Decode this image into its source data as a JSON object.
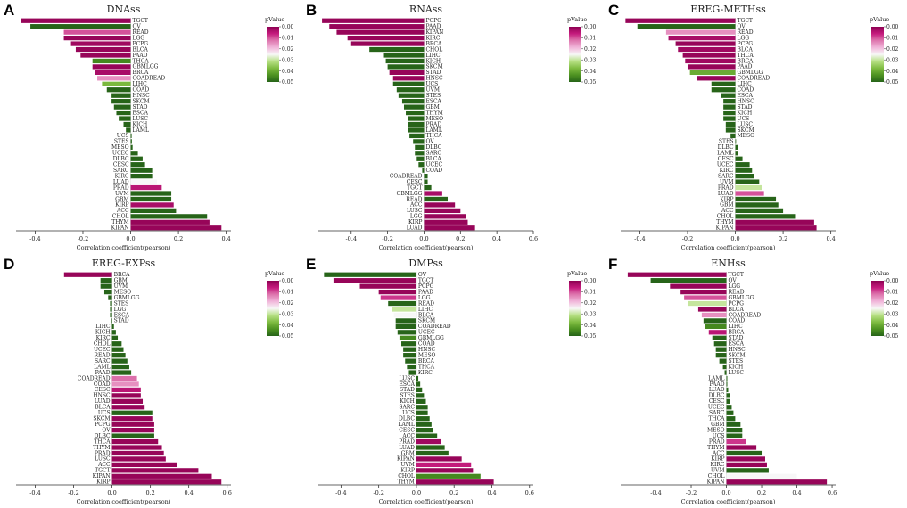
{
  "legend": {
    "title": "pValue",
    "ticks": [
      "0.00",
      "0.01",
      "0.02",
      "0.03",
      "0.04",
      "0.05"
    ],
    "colors": [
      "#8e0152",
      "#c51b7d",
      "#de77ae",
      "#f1b6da",
      "#f7f7f7",
      "#b8e186",
      "#7fbc41",
      "#4d9221",
      "#276419"
    ]
  },
  "xlabel": "Correlation coefficient(pearson)",
  "chart_data": [
    {
      "label": "A",
      "title": "DNAss",
      "type": "bar",
      "orientation": "horizontal",
      "xlim": [
        -0.48,
        0.42
      ],
      "xticks": [
        -0.4,
        -0.2,
        0.0,
        0.2,
        0.4
      ],
      "categories": [
        "TGCT",
        "OV",
        "READ",
        "LGG",
        "PCPG",
        "BLCA",
        "PAAD",
        "THCA",
        "GBMLGG",
        "BRCA",
        "COADREAD",
        "LIHC",
        "COAD",
        "HNSC",
        "SKCM",
        "STAD",
        "ESCA",
        "LUSC",
        "KICH",
        "LAML",
        "UCS",
        "STES",
        "MESO",
        "UCEC",
        "DLBC",
        "CESC",
        "SARC",
        "KIRC",
        "LUAD",
        "PRAD",
        "UVM",
        "GBM",
        "KIRP",
        "ACC",
        "CHOL",
        "THYM",
        "KIPAN"
      ],
      "values": [
        -0.46,
        -0.42,
        -0.28,
        -0.28,
        -0.25,
        -0.23,
        -0.21,
        -0.16,
        -0.16,
        -0.15,
        -0.14,
        -0.12,
        -0.1,
        -0.08,
        -0.08,
        -0.07,
        -0.06,
        -0.05,
        -0.03,
        -0.02,
        0.004,
        0.005,
        0.008,
        0.03,
        0.05,
        0.06,
        0.09,
        0.09,
        0.11,
        0.13,
        0.17,
        0.17,
        0.18,
        0.19,
        0.32,
        0.33,
        0.38
      ],
      "pvalues": [
        0.001,
        0.05,
        0.01,
        0.001,
        0.002,
        0.001,
        0.001,
        0.045,
        0.001,
        0.003,
        0.015,
        0.038,
        0.05,
        0.05,
        0.05,
        0.05,
        0.05,
        0.05,
        0.05,
        0.05,
        0.05,
        0.05,
        0.05,
        0.05,
        0.05,
        0.05,
        0.05,
        0.05,
        0.025,
        0.005,
        0.05,
        0.05,
        0.003,
        0.05,
        0.05,
        0.001,
        0.001
      ]
    },
    {
      "label": "B",
      "title": "RNAss",
      "type": "bar",
      "orientation": "horizontal",
      "xlim": [
        -0.58,
        0.6
      ],
      "xticks": [
        -0.4,
        -0.2,
        0.0,
        0.2,
        0.4,
        0.6
      ],
      "categories": [
        "PCPG",
        "PAAD",
        "KIPAN",
        "KIRC",
        "BRCA",
        "CHOL",
        "LIHC",
        "KICH",
        "SKCM",
        "STAD",
        "HNSC",
        "UCS",
        "UVM",
        "STES",
        "ESCA",
        "GBM",
        "THYM",
        "MESO",
        "PRAD",
        "LAML",
        "THCA",
        "OV",
        "DLBC",
        "SARC",
        "BLCA",
        "UCEC",
        "COAD",
        "COADREAD",
        "CESC",
        "TGCT",
        "GBMLGG",
        "READ",
        "ACC",
        "LUSC",
        "LGG",
        "KIRP",
        "LUAD"
      ],
      "values": [
        -0.56,
        -0.52,
        -0.48,
        -0.42,
        -0.4,
        -0.3,
        -0.22,
        -0.21,
        -0.2,
        -0.19,
        -0.17,
        -0.17,
        -0.15,
        -0.14,
        -0.12,
        -0.11,
        -0.1,
        -0.09,
        -0.09,
        -0.09,
        -0.08,
        -0.06,
        -0.05,
        -0.05,
        -0.04,
        -0.03,
        -0.01,
        0.02,
        0.02,
        0.04,
        0.1,
        0.13,
        0.17,
        0.2,
        0.23,
        0.24,
        0.28
      ],
      "pvalues": [
        0.001,
        0.001,
        0.001,
        0.001,
        0.001,
        0.05,
        0.05,
        0.05,
        0.05,
        0.001,
        0.001,
        0.05,
        0.05,
        0.05,
        0.05,
        0.05,
        0.05,
        0.05,
        0.05,
        0.05,
        0.05,
        0.05,
        0.05,
        0.05,
        0.05,
        0.05,
        0.05,
        0.05,
        0.05,
        0.05,
        0.003,
        0.05,
        0.001,
        0.001,
        0.001,
        0.001,
        0.001
      ]
    },
    {
      "label": "C",
      "title": "EREG-METHss",
      "type": "bar",
      "orientation": "horizontal",
      "xlim": [
        -0.48,
        0.42
      ],
      "xticks": [
        -0.4,
        -0.2,
        0.0,
        0.2,
        0.4
      ],
      "categories": [
        "TGCT",
        "OV",
        "READ",
        "LGG",
        "PCPG",
        "BLCA",
        "THCA",
        "BRCA",
        "PAAD",
        "GBMLGG",
        "COADREAD",
        "LIHC",
        "COAD",
        "ESCA",
        "HNSC",
        "STAD",
        "KICH",
        "UCS",
        "LUSC",
        "SKCM",
        "MESO",
        "STES",
        "DLBC",
        "LAML",
        "CESC",
        "UCEC",
        "KIRC",
        "SARC",
        "UVM",
        "PRAD",
        "LUAD",
        "KIRP",
        "GBM",
        "ACC",
        "CHOL",
        "THYM",
        "KIPAN"
      ],
      "values": [
        -0.46,
        -0.41,
        -0.29,
        -0.28,
        -0.25,
        -0.24,
        -0.22,
        -0.21,
        -0.2,
        -0.19,
        -0.16,
        -0.1,
        -0.1,
        -0.06,
        -0.05,
        -0.05,
        -0.05,
        -0.05,
        -0.04,
        -0.04,
        -0.02,
        0.003,
        0.01,
        0.01,
        0.03,
        0.06,
        0.07,
        0.08,
        0.1,
        0.11,
        0.12,
        0.17,
        0.18,
        0.2,
        0.25,
        0.33,
        0.34
      ],
      "pvalues": [
        0.001,
        0.05,
        0.015,
        0.003,
        0.001,
        0.002,
        0.001,
        0.002,
        0.001,
        0.04,
        0.001,
        0.05,
        0.05,
        0.05,
        0.05,
        0.05,
        0.05,
        0.05,
        0.05,
        0.05,
        0.05,
        0.05,
        0.05,
        0.05,
        0.05,
        0.05,
        0.05,
        0.05,
        0.05,
        0.03,
        0.01,
        0.05,
        0.05,
        0.05,
        0.05,
        0.001,
        0.001
      ]
    },
    {
      "label": "D",
      "title": "EREG-EXPss",
      "type": "bar",
      "orientation": "horizontal",
      "xlim": [
        -0.5,
        0.62
      ],
      "xticks": [
        -0.4,
        -0.2,
        0.0,
        0.2,
        0.4,
        0.6
      ],
      "categories": [
        "BRCA",
        "GBM",
        "UVM",
        "MESO",
        "GBMLGG",
        "STES",
        "LGG",
        "ESCA",
        "STAD",
        "LIHC",
        "KICH",
        "KIRC",
        "CHOL",
        "UCEC",
        "READ",
        "SARC",
        "LAML",
        "PAAD",
        "COADREAD",
        "COAD",
        "CESC",
        "HNSC",
        "LUAD",
        "BLCA",
        "UCS",
        "SKCM",
        "PCPG",
        "OV",
        "DLBC",
        "THCA",
        "THYM",
        "PRAD",
        "LUSC",
        "ACC",
        "TGCT",
        "KIPAN",
        "KIRP"
      ],
      "values": [
        -0.25,
        -0.06,
        -0.06,
        -0.04,
        -0.02,
        -0.01,
        -0.01,
        -0.01,
        -0.005,
        0.01,
        0.02,
        0.03,
        0.05,
        0.06,
        0.07,
        0.08,
        0.09,
        0.1,
        0.13,
        0.14,
        0.15,
        0.15,
        0.16,
        0.17,
        0.21,
        0.21,
        0.22,
        0.22,
        0.22,
        0.24,
        0.26,
        0.27,
        0.28,
        0.34,
        0.45,
        0.52,
        0.57
      ],
      "pvalues": [
        0.001,
        0.05,
        0.05,
        0.05,
        0.05,
        0.05,
        0.05,
        0.05,
        0.05,
        0.05,
        0.05,
        0.05,
        0.05,
        0.05,
        0.05,
        0.05,
        0.05,
        0.05,
        0.012,
        0.015,
        0.005,
        0.001,
        0.001,
        0.001,
        0.05,
        0.001,
        0.001,
        0.001,
        0.05,
        0.001,
        0.001,
        0.001,
        0.001,
        0.001,
        0.001,
        0.001,
        0.001
      ]
    },
    {
      "label": "E",
      "title": "DMPss",
      "type": "bar",
      "orientation": "horizontal",
      "xlim": [
        -0.52,
        0.62
      ],
      "xticks": [
        -0.4,
        -0.2,
        0.0,
        0.2,
        0.4,
        0.6
      ],
      "categories": [
        "OV",
        "TGCT",
        "PCPG",
        "PAAD",
        "LGG",
        "READ",
        "LIHC",
        "BLCA",
        "SKCM",
        "COADREAD",
        "UCEC",
        "GBMLGG",
        "COAD",
        "HNSC",
        "MESO",
        "BRCA",
        "THCA",
        "KIRC",
        "LUSC",
        "ESCA",
        "STAD",
        "STES",
        "KICH",
        "SARC",
        "UCS",
        "DLBC",
        "LAML",
        "CESC",
        "ACC",
        "PRAD",
        "LUAD",
        "GBM",
        "KIPAN",
        "UVM",
        "KIRP",
        "CHOL",
        "THYM"
      ],
      "values": [
        -0.49,
        -0.44,
        -0.3,
        -0.2,
        -0.19,
        -0.15,
        -0.13,
        -0.12,
        -0.11,
        -0.11,
        -0.1,
        -0.09,
        -0.08,
        -0.07,
        -0.07,
        -0.06,
        -0.05,
        -0.04,
        0.01,
        0.02,
        0.03,
        0.04,
        0.05,
        0.06,
        0.06,
        0.07,
        0.08,
        0.09,
        0.11,
        0.13,
        0.15,
        0.17,
        0.24,
        0.29,
        0.3,
        0.34,
        0.41
      ],
      "pvalues": [
        0.05,
        0.001,
        0.001,
        0.001,
        0.008,
        0.05,
        0.03,
        0.025,
        0.05,
        0.05,
        0.05,
        0.045,
        0.05,
        0.05,
        0.05,
        0.05,
        0.05,
        0.05,
        0.05,
        0.05,
        0.05,
        0.05,
        0.05,
        0.05,
        0.05,
        0.05,
        0.05,
        0.05,
        0.05,
        0.002,
        0.05,
        0.05,
        0.001,
        0.006,
        0.001,
        0.045,
        0.001
      ]
    },
    {
      "label": "F",
      "title": "ENHss",
      "type": "bar",
      "orientation": "horizontal",
      "xlim": [
        -0.6,
        0.62
      ],
      "xticks": [
        -0.4,
        -0.2,
        0.0,
        0.2,
        0.4,
        0.6
      ],
      "categories": [
        "TGCT",
        "OV",
        "LGG",
        "READ",
        "GBMLGG",
        "PCPG",
        "BLCA",
        "COADREAD",
        "COAD",
        "LIHC",
        "BRCA",
        "STAD",
        "ESCA",
        "HNSC",
        "SKCM",
        "STES",
        "KICH",
        "LUSC",
        "LAML",
        "PAAD",
        "LUAD",
        "DLBC",
        "CESC",
        "UCEC",
        "SARC",
        "THCA",
        "GBM",
        "MESO",
        "UCS",
        "PRAD",
        "THYM",
        "ACC",
        "KIRP",
        "KIRC",
        "UVM",
        "CHOL",
        "KIPAN"
      ],
      "values": [
        -0.56,
        -0.43,
        -0.32,
        -0.26,
        -0.24,
        -0.22,
        -0.16,
        -0.14,
        -0.13,
        -0.12,
        -0.1,
        -0.08,
        -0.07,
        -0.06,
        -0.06,
        -0.04,
        -0.02,
        -0.01,
        0.005,
        0.005,
        0.01,
        0.02,
        0.02,
        0.03,
        0.04,
        0.05,
        0.08,
        0.09,
        0.09,
        0.11,
        0.17,
        0.2,
        0.22,
        0.23,
        0.24,
        0.4,
        0.57
      ],
      "pvalues": [
        0.001,
        0.05,
        0.001,
        0.001,
        0.01,
        0.03,
        0.001,
        0.015,
        0.05,
        0.045,
        0.005,
        0.05,
        0.05,
        0.05,
        0.05,
        0.05,
        0.05,
        0.05,
        0.05,
        0.05,
        0.05,
        0.05,
        0.05,
        0.05,
        0.05,
        0.05,
        0.05,
        0.05,
        0.05,
        0.008,
        0.001,
        0.05,
        0.001,
        0.001,
        0.05,
        0.025,
        0.001
      ]
    }
  ]
}
